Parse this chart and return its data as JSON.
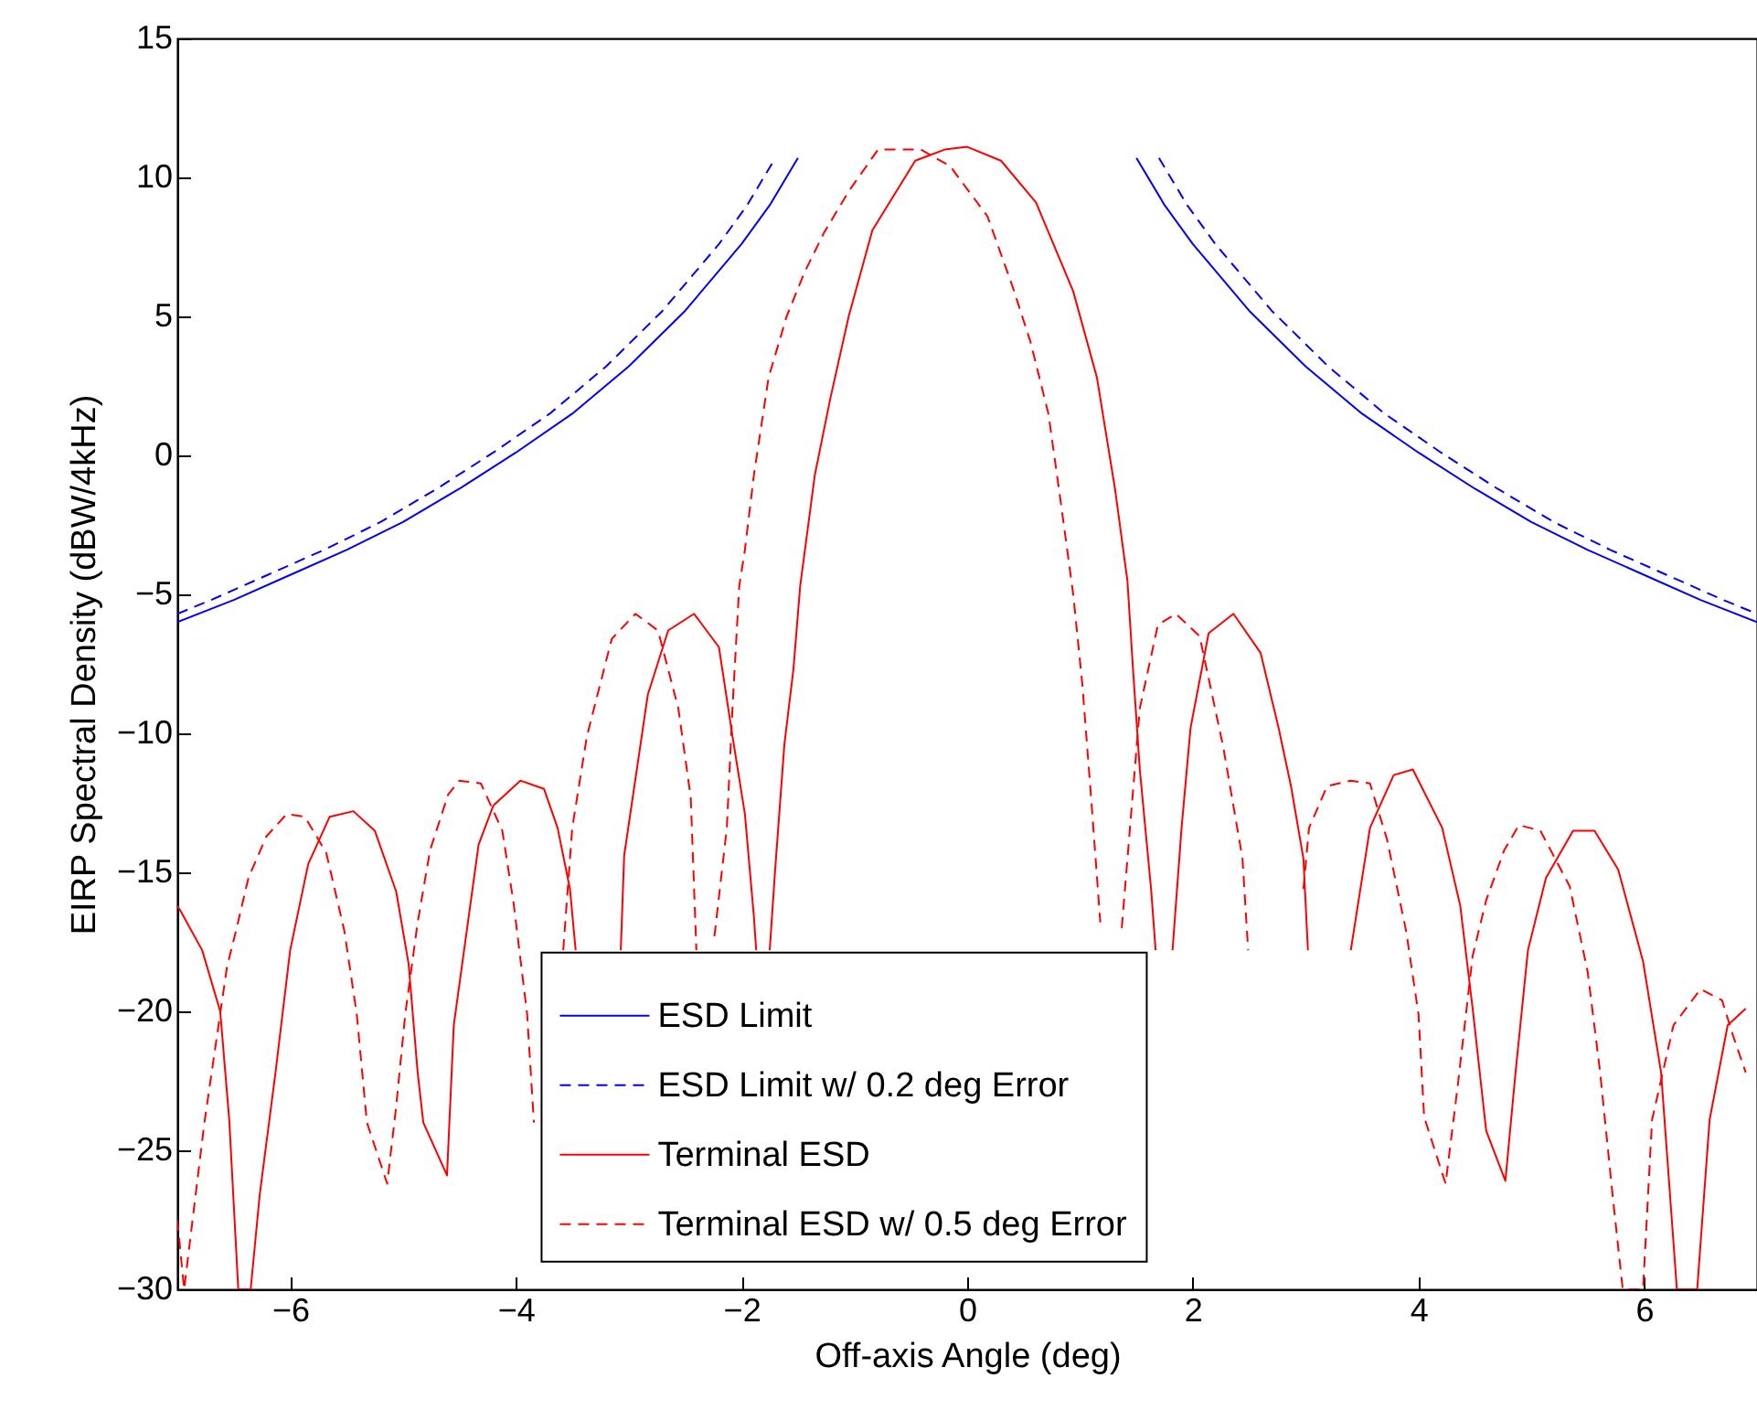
{
  "chart_data": {
    "type": "line",
    "xlabel": "Off-axis Angle (deg)",
    "ylabel": "EIRP Spectral Density (dBW/4kHz)",
    "xlim": [
      -7,
      7
    ],
    "ylim": [
      -30,
      15
    ],
    "xticks": [
      -6,
      -4,
      -2,
      0,
      2,
      4,
      6
    ],
    "yticks": [
      -30,
      -25,
      -20,
      -15,
      -10,
      -5,
      0,
      5,
      10,
      15
    ],
    "grid": false,
    "legend": "bottom",
    "series": [
      {
        "name": "ESD Limit",
        "color": "#0000ff",
        "line_style": "solid",
        "x": [
          -7,
          -6.5,
          -6,
          -5.5,
          -5,
          -4.5,
          -4,
          -3.5,
          -3,
          -2.5,
          -2,
          -1.75,
          -1.5,
          0,
          1.5,
          1.75,
          2,
          2.5,
          3,
          3.5,
          4,
          4.5,
          5,
          5.5,
          6,
          6.5,
          7
        ],
        "values": [
          -6.0,
          -5.2,
          -4.3,
          -3.4,
          -2.4,
          -1.2,
          0.1,
          1.5,
          3.2,
          5.2,
          7.6,
          9.0,
          10.7,
          null,
          10.7,
          9.0,
          7.6,
          5.2,
          3.2,
          1.5,
          0.1,
          -1.2,
          -2.4,
          -3.4,
          -4.3,
          -5.2,
          -6.0
        ]
      },
      {
        "name": "ESD Limit w/ 0.2 deg Error",
        "color": "#0000ff",
        "line_style": "dashed",
        "x": [
          -7,
          -6.7,
          -6.2,
          -5.7,
          -5.2,
          -4.7,
          -4.2,
          -3.7,
          -3.2,
          -2.7,
          -2.2,
          -1.95,
          -1.7,
          0,
          1.7,
          1.95,
          2.2,
          2.7,
          3.2,
          3.7,
          4.2,
          4.7,
          5.2,
          5.7,
          6.2,
          6.7,
          7
        ],
        "values": [
          -5.7,
          -5.2,
          -4.3,
          -3.4,
          -2.4,
          -1.2,
          0.1,
          1.5,
          3.2,
          5.2,
          7.6,
          9.0,
          10.7,
          null,
          10.7,
          9.0,
          7.6,
          5.2,
          3.2,
          1.5,
          0.1,
          -1.2,
          -2.4,
          -3.4,
          -4.3,
          -5.2,
          -5.7
        ]
      },
      {
        "name": "Terminal ESD",
        "color": "#ff0000",
        "line_style": "solid",
        "x": [
          -7,
          -6.97,
          -6.78,
          -6.62,
          -6.54,
          -6.46,
          -6.35,
          -6.27,
          -6.13,
          -6.0,
          -5.84,
          -5.65,
          -5.44,
          -5.25,
          -5.06,
          -4.95,
          -4.87,
          -4.82,
          -4.61,
          -4.55,
          -4.33,
          -4.2,
          -3.96,
          -3.75,
          -3.63,
          -3.52,
          -3.47,
          -3.3,
          -3.07,
          -3.04,
          -2.83,
          -2.65,
          -2.42,
          -2.2,
          -2.08,
          -1.97,
          -1.89,
          -1.87,
          -1.8,
          -1.75,
          -1.7,
          -1.62,
          -1.54,
          -1.48,
          -1.35,
          -1.21,
          -1.05,
          -0.84,
          -0.46,
          -0.2,
          0,
          0.3,
          0.61,
          0.94,
          1.15,
          1.31,
          1.42,
          1.47,
          1.53,
          1.63,
          1.67,
          1.75,
          1.82,
          1.9,
          1.98,
          2.14,
          2.36,
          2.6,
          2.76,
          2.87,
          2.98,
          3.02,
          3.2,
          3.4,
          3.57,
          3.78,
          3.95,
          4.21,
          4.37,
          4.48,
          4.6,
          4.77,
          4.86,
          4.97,
          5.13,
          5.37,
          5.56,
          5.77,
          5.99,
          6.15,
          6.29,
          6.47,
          6.58,
          6.74,
          6.9
        ],
        "values": [
          -16.2,
          -16.4,
          -17.8,
          -20.0,
          -23.9,
          -30,
          -30,
          -26.6,
          -22.2,
          -17.8,
          -14.7,
          -13.0,
          -12.8,
          -13.5,
          -15.7,
          -18.3,
          -22.2,
          -24.0,
          -25.9,
          -20.5,
          -14.0,
          -12.6,
          -11.7,
          -12.0,
          -13.4,
          -15.6,
          -17.8,
          null,
          -17.8,
          -14.4,
          -8.6,
          -6.3,
          -5.7,
          -6.9,
          -10.1,
          -12.9,
          -16.6,
          -17.8,
          null,
          -17.8,
          -14.8,
          -10.4,
          -7.7,
          -4.7,
          -0.7,
          2.1,
          5.0,
          8.1,
          10.6,
          11.0,
          11.1,
          10.6,
          9.1,
          5.9,
          2.8,
          -1.2,
          -4.5,
          -7.7,
          -11.3,
          -15.6,
          -17.8,
          null,
          -17.8,
          -13.4,
          -9.8,
          -6.4,
          -5.7,
          -7.1,
          -9.8,
          -11.9,
          -14.5,
          -17.8,
          null,
          -17.8,
          -13.4,
          -11.5,
          -11.3,
          -13.4,
          -16.2,
          -19.9,
          -24.3,
          -26.1,
          -22.2,
          -17.8,
          -15.2,
          -13.5,
          -13.5,
          -14.9,
          -18.2,
          -22.2,
          -30,
          -30,
          -23.9,
          -20.5,
          -19.9
        ]
      },
      {
        "name": "Terminal ESD w/ 0.5 deg Error",
        "color": "#ff0000",
        "line_style": "dashed",
        "x": [
          -7,
          -6.94,
          -6.76,
          -6.56,
          -6.48,
          -6.37,
          -6.21,
          -6.03,
          -5.87,
          -5.68,
          -5.52,
          -5.41,
          -5.32,
          -5.14,
          -5.06,
          -4.98,
          -4.87,
          -4.76,
          -4.6,
          -4.5,
          -4.31,
          -4.12,
          -4.02,
          -3.9,
          -3.84,
          -3.7,
          -3.58,
          -3.5,
          -3.37,
          -3.15,
          -2.94,
          -2.74,
          -2.56,
          -2.45,
          -2.4,
          -2.3,
          -2.24,
          -2.13,
          -2.08,
          -2.02,
          -1.97,
          -1.89,
          -1.76,
          -1.6,
          -1.44,
          -1.27,
          -1.05,
          -0.79,
          -0.41,
          -0.15,
          0.18,
          0.4,
          0.56,
          0.72,
          0.83,
          0.94,
          1.02,
          1.1,
          1.18,
          1.26,
          1.37,
          1.53,
          1.69,
          1.85,
          2.06,
          2.27,
          2.44,
          2.49,
          2.7,
          2.98,
          3.03,
          3.19,
          3.4,
          3.57,
          3.72,
          3.89,
          4.0,
          4.05,
          4.24,
          4.35,
          4.48,
          4.6,
          4.76,
          4.89,
          5.08,
          5.34,
          5.5,
          5.61,
          5.72,
          5.81,
          5.99,
          6.07,
          6.26,
          6.5,
          6.69,
          6.79,
          6.9
        ],
        "values": [
          -27.5,
          -30,
          -24.0,
          -18.4,
          -17.1,
          -15.2,
          -13.7,
          -12.9,
          -13.0,
          -14.3,
          -17.1,
          -20.1,
          -24.0,
          -26.2,
          -23.4,
          -20.1,
          -16.8,
          -14.2,
          -12.2,
          -11.7,
          -11.8,
          -13.5,
          -16.1,
          -20.1,
          -24.0,
          null,
          -17.8,
          -13.4,
          -10.1,
          -6.6,
          -5.7,
          -6.3,
          -9.1,
          -12.3,
          -17.8,
          null,
          -17.3,
          -13.4,
          -9.1,
          -4.7,
          -3.4,
          -0.7,
          2.8,
          5.0,
          6.6,
          8.0,
          9.5,
          11.0,
          11.0,
          10.4,
          8.6,
          6.1,
          4.1,
          1.5,
          -1.7,
          -5.0,
          -8.2,
          -12.4,
          -16.8,
          null,
          -17.0,
          -9.1,
          -6.1,
          -5.7,
          -6.5,
          -10.5,
          -14.5,
          -17.8,
          null,
          -15.6,
          -13.4,
          -11.9,
          -11.7,
          -11.8,
          -13.8,
          -17.1,
          -20.1,
          -23.8,
          -26.2,
          -22.6,
          -18.0,
          -16.0,
          -14.2,
          -13.3,
          -13.5,
          -15.5,
          -18.6,
          -22.2,
          -26.6,
          -30,
          -30,
          -23.9,
          -20.5,
          -19.2,
          -19.6,
          -20.9,
          -22.2
        ]
      }
    ]
  }
}
